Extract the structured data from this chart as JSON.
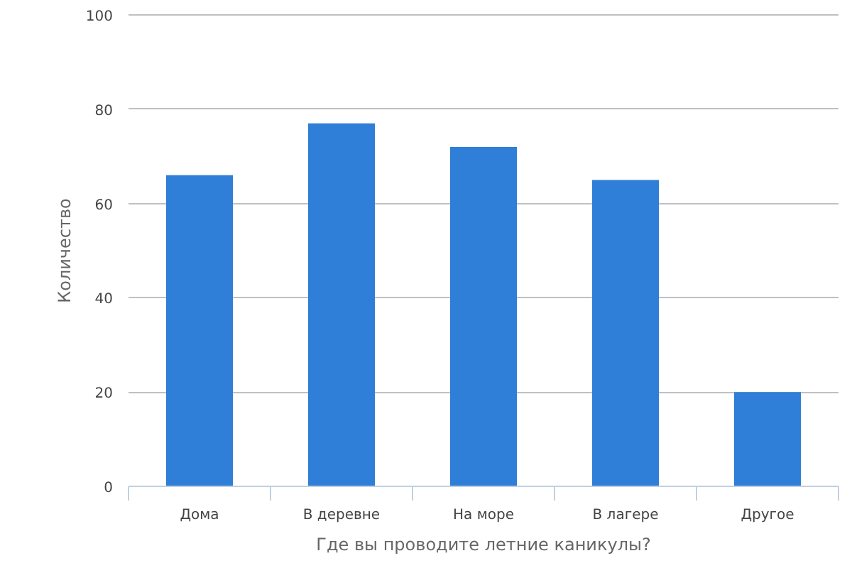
{
  "chart_data": {
    "type": "bar",
    "xlabel": "Где вы проводите летние каникулы?",
    "ylabel": "Количество",
    "categories": [
      "Дома",
      "В деревне",
      "На море",
      "В лагере",
      "Другое"
    ],
    "values": [
      66,
      77,
      72,
      65,
      20
    ],
    "color": "#2f7ed8",
    "ylim": [
      0,
      100
    ],
    "yticks": [
      0,
      20,
      40,
      60,
      80,
      100
    ],
    "grid": "y"
  }
}
